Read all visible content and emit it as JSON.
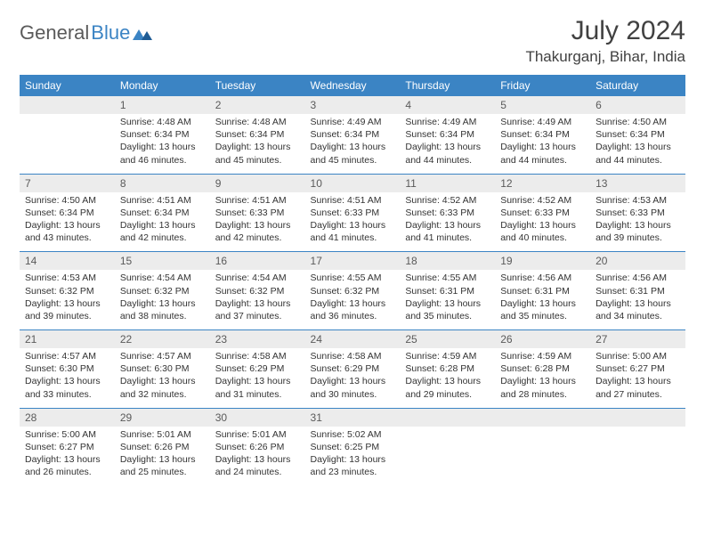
{
  "logo": {
    "text1": "General",
    "text2": "Blue"
  },
  "title": "July 2024",
  "location": "Thakurganj, Bihar, India",
  "colors": {
    "header_bg": "#3b84c4",
    "header_fg": "#ffffff",
    "daynum_bg": "#ececec",
    "text": "#333333",
    "border": "#3b84c4"
  },
  "weekdays": [
    "Sunday",
    "Monday",
    "Tuesday",
    "Wednesday",
    "Thursday",
    "Friday",
    "Saturday"
  ],
  "weeks": [
    [
      null,
      {
        "n": "1",
        "sr": "4:48 AM",
        "ss": "6:34 PM",
        "dl": "13 hours and 46 minutes."
      },
      {
        "n": "2",
        "sr": "4:48 AM",
        "ss": "6:34 PM",
        "dl": "13 hours and 45 minutes."
      },
      {
        "n": "3",
        "sr": "4:49 AM",
        "ss": "6:34 PM",
        "dl": "13 hours and 45 minutes."
      },
      {
        "n": "4",
        "sr": "4:49 AM",
        "ss": "6:34 PM",
        "dl": "13 hours and 44 minutes."
      },
      {
        "n": "5",
        "sr": "4:49 AM",
        "ss": "6:34 PM",
        "dl": "13 hours and 44 minutes."
      },
      {
        "n": "6",
        "sr": "4:50 AM",
        "ss": "6:34 PM",
        "dl": "13 hours and 44 minutes."
      }
    ],
    [
      {
        "n": "7",
        "sr": "4:50 AM",
        "ss": "6:34 PM",
        "dl": "13 hours and 43 minutes."
      },
      {
        "n": "8",
        "sr": "4:51 AM",
        "ss": "6:34 PM",
        "dl": "13 hours and 42 minutes."
      },
      {
        "n": "9",
        "sr": "4:51 AM",
        "ss": "6:33 PM",
        "dl": "13 hours and 42 minutes."
      },
      {
        "n": "10",
        "sr": "4:51 AM",
        "ss": "6:33 PM",
        "dl": "13 hours and 41 minutes."
      },
      {
        "n": "11",
        "sr": "4:52 AM",
        "ss": "6:33 PM",
        "dl": "13 hours and 41 minutes."
      },
      {
        "n": "12",
        "sr": "4:52 AM",
        "ss": "6:33 PM",
        "dl": "13 hours and 40 minutes."
      },
      {
        "n": "13",
        "sr": "4:53 AM",
        "ss": "6:33 PM",
        "dl": "13 hours and 39 minutes."
      }
    ],
    [
      {
        "n": "14",
        "sr": "4:53 AM",
        "ss": "6:32 PM",
        "dl": "13 hours and 39 minutes."
      },
      {
        "n": "15",
        "sr": "4:54 AM",
        "ss": "6:32 PM",
        "dl": "13 hours and 38 minutes."
      },
      {
        "n": "16",
        "sr": "4:54 AM",
        "ss": "6:32 PM",
        "dl": "13 hours and 37 minutes."
      },
      {
        "n": "17",
        "sr": "4:55 AM",
        "ss": "6:32 PM",
        "dl": "13 hours and 36 minutes."
      },
      {
        "n": "18",
        "sr": "4:55 AM",
        "ss": "6:31 PM",
        "dl": "13 hours and 35 minutes."
      },
      {
        "n": "19",
        "sr": "4:56 AM",
        "ss": "6:31 PM",
        "dl": "13 hours and 35 minutes."
      },
      {
        "n": "20",
        "sr": "4:56 AM",
        "ss": "6:31 PM",
        "dl": "13 hours and 34 minutes."
      }
    ],
    [
      {
        "n": "21",
        "sr": "4:57 AM",
        "ss": "6:30 PM",
        "dl": "13 hours and 33 minutes."
      },
      {
        "n": "22",
        "sr": "4:57 AM",
        "ss": "6:30 PM",
        "dl": "13 hours and 32 minutes."
      },
      {
        "n": "23",
        "sr": "4:58 AM",
        "ss": "6:29 PM",
        "dl": "13 hours and 31 minutes."
      },
      {
        "n": "24",
        "sr": "4:58 AM",
        "ss": "6:29 PM",
        "dl": "13 hours and 30 minutes."
      },
      {
        "n": "25",
        "sr": "4:59 AM",
        "ss": "6:28 PM",
        "dl": "13 hours and 29 minutes."
      },
      {
        "n": "26",
        "sr": "4:59 AM",
        "ss": "6:28 PM",
        "dl": "13 hours and 28 minutes."
      },
      {
        "n": "27",
        "sr": "5:00 AM",
        "ss": "6:27 PM",
        "dl": "13 hours and 27 minutes."
      }
    ],
    [
      {
        "n": "28",
        "sr": "5:00 AM",
        "ss": "6:27 PM",
        "dl": "13 hours and 26 minutes."
      },
      {
        "n": "29",
        "sr": "5:01 AM",
        "ss": "6:26 PM",
        "dl": "13 hours and 25 minutes."
      },
      {
        "n": "30",
        "sr": "5:01 AM",
        "ss": "6:26 PM",
        "dl": "13 hours and 24 minutes."
      },
      {
        "n": "31",
        "sr": "5:02 AM",
        "ss": "6:25 PM",
        "dl": "13 hours and 23 minutes."
      },
      null,
      null,
      null
    ]
  ],
  "labels": {
    "sunrise": "Sunrise: ",
    "sunset": "Sunset: ",
    "daylight": "Daylight: "
  }
}
